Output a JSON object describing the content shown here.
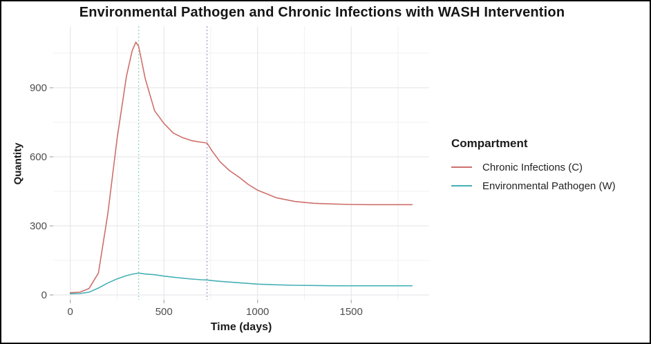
{
  "legend": {
    "title": "Compartment"
  },
  "colors": {
    "background": "#ffffff",
    "frame_border": "#000000",
    "grid_major": "#e3e3e7",
    "grid_minor": "#f0f0f3",
    "tick": "#9a9a9a",
    "tick_label": "#4d4d4d",
    "title_text": "#151515"
  },
  "chart_data": {
    "type": "line",
    "title": "Environmental Pathogen and Chronic Infections with WASH Intervention",
    "xlabel": "Time (days)",
    "ylabel": "Quantity",
    "xlim": [
      0,
      1825
    ],
    "ylim": [
      0,
      1170
    ],
    "x_ticks": [
      0,
      500,
      1000,
      1500
    ],
    "x_minor_ticks": [
      250,
      750,
      1250,
      1750
    ],
    "y_ticks": [
      0,
      300,
      600,
      900
    ],
    "y_minor_ticks": [
      150,
      450,
      750,
      1050
    ],
    "grid": true,
    "legend_position": "right",
    "x": [
      0,
      50,
      100,
      150,
      200,
      250,
      300,
      330,
      350,
      365,
      400,
      450,
      500,
      550,
      600,
      650,
      700,
      730,
      760,
      800,
      850,
      900,
      950,
      1000,
      1100,
      1200,
      1300,
      1400,
      1500,
      1600,
      1700,
      1825
    ],
    "series": [
      {
        "name": "Chronic Infections (C)",
        "color": "#cd6f6a",
        "values": [
          10,
          12,
          28,
          95,
          350,
          680,
          950,
          1060,
          1098,
          1080,
          940,
          800,
          745,
          703,
          683,
          670,
          663,
          660,
          622,
          578,
          540,
          512,
          480,
          455,
          422,
          406,
          398,
          395,
          393,
          392,
          392,
          392
        ]
      },
      {
        "name": "Environmental Pathogen (W)",
        "color": "#45b0b5",
        "values": [
          5,
          6,
          12,
          30,
          52,
          70,
          84,
          90,
          93,
          95,
          91,
          88,
          82,
          77,
          73,
          69,
          66,
          65,
          62,
          59,
          56,
          53,
          50,
          47,
          44,
          42,
          41,
          40,
          40,
          40,
          40,
          40
        ]
      }
    ],
    "vlines": [
      {
        "x": 365,
        "color": "#8ed8ab",
        "style": "dotted"
      },
      {
        "x": 730,
        "color": "#a59fc1",
        "style": "dotted"
      }
    ]
  }
}
